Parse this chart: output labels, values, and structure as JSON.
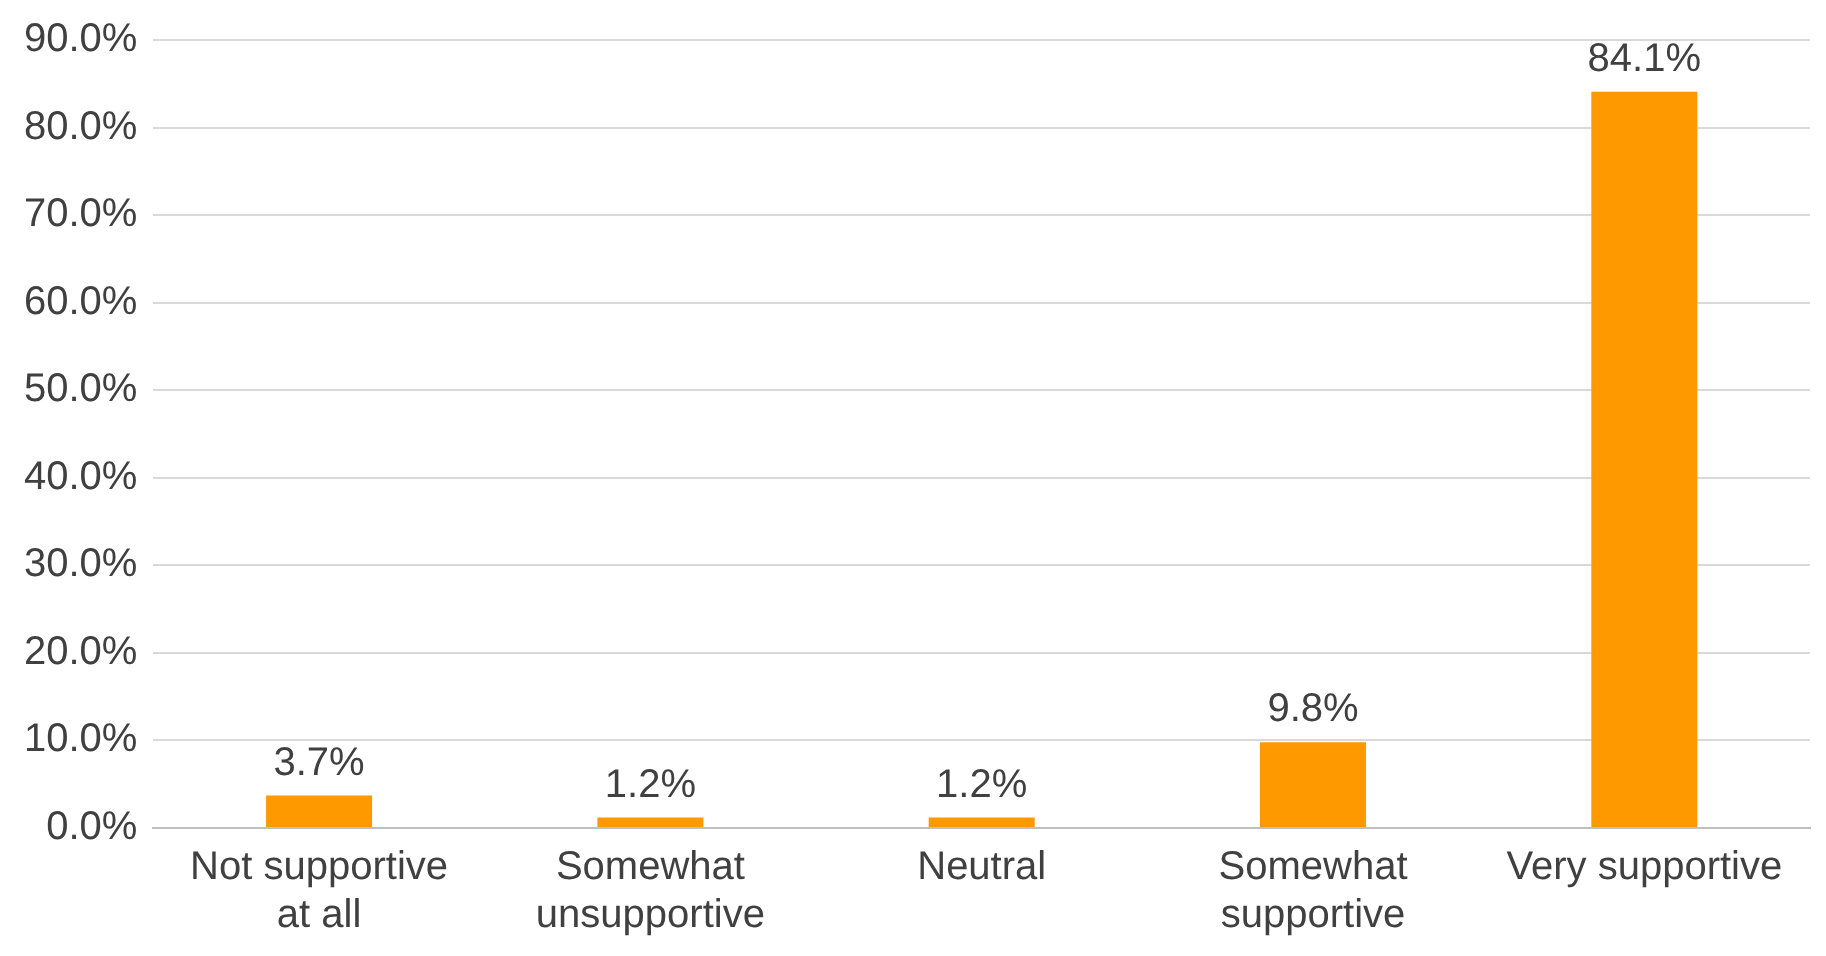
{
  "chart_data": {
    "type": "bar",
    "categories": [
      "Not supportive at all",
      "Somewhat unsupportive",
      "Neutral",
      "Somewhat supportive",
      "Very supportive"
    ],
    "values": [
      3.7,
      1.2,
      1.2,
      9.8,
      84.1
    ],
    "value_labels": [
      "3.7%",
      "1.2%",
      "1.2%",
      "9.8%",
      "84.1%"
    ],
    "color": "#ff9900",
    "ylim": [
      0,
      90
    ],
    "yticks": [
      {
        "value": 0,
        "label": "0.0%"
      },
      {
        "value": 10,
        "label": "10.0%"
      },
      {
        "value": 20,
        "label": "20.0%"
      },
      {
        "value": 30,
        "label": "30.0%"
      },
      {
        "value": 40,
        "label": "40.0%"
      },
      {
        "value": 50,
        "label": "50.0%"
      },
      {
        "value": 60,
        "label": "60.0%"
      },
      {
        "value": 70,
        "label": "70.0%"
      },
      {
        "value": 80,
        "label": "80.0%"
      },
      {
        "value": 90,
        "label": "90.0%"
      }
    ],
    "grid": "y",
    "legend": false
  }
}
